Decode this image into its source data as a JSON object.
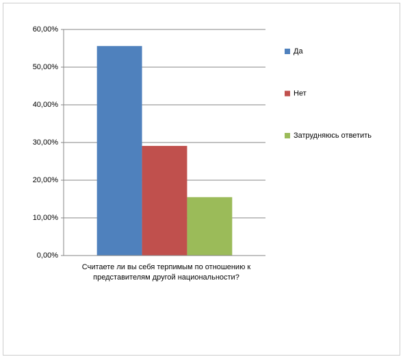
{
  "chart_data": {
    "type": "bar",
    "categories": [
      "Считаете  ли вы себя терпимым по отношению  к представителям  другой национальности?"
    ],
    "series": [
      {
        "name": "Да",
        "color": "#4f81bd",
        "values": [
          55.6
        ]
      },
      {
        "name": "Нет",
        "color": "#c0504d",
        "values": [
          29.1
        ]
      },
      {
        "name": "Затрудняюсь ответить",
        "color": "#9bbb59",
        "values": [
          15.5
        ]
      }
    ],
    "ylim": [
      0,
      60
    ],
    "yticks": [
      {
        "value": 0,
        "label": "0,00%"
      },
      {
        "value": 10,
        "label": "10,00%"
      },
      {
        "value": 20,
        "label": "20,00%"
      },
      {
        "value": 30,
        "label": "30,00%"
      },
      {
        "value": 40,
        "label": "40,00%"
      },
      {
        "value": 50,
        "label": "50,00%"
      },
      {
        "value": 60,
        "label": "60,00%"
      }
    ],
    "grid": true,
    "legend": "right"
  }
}
